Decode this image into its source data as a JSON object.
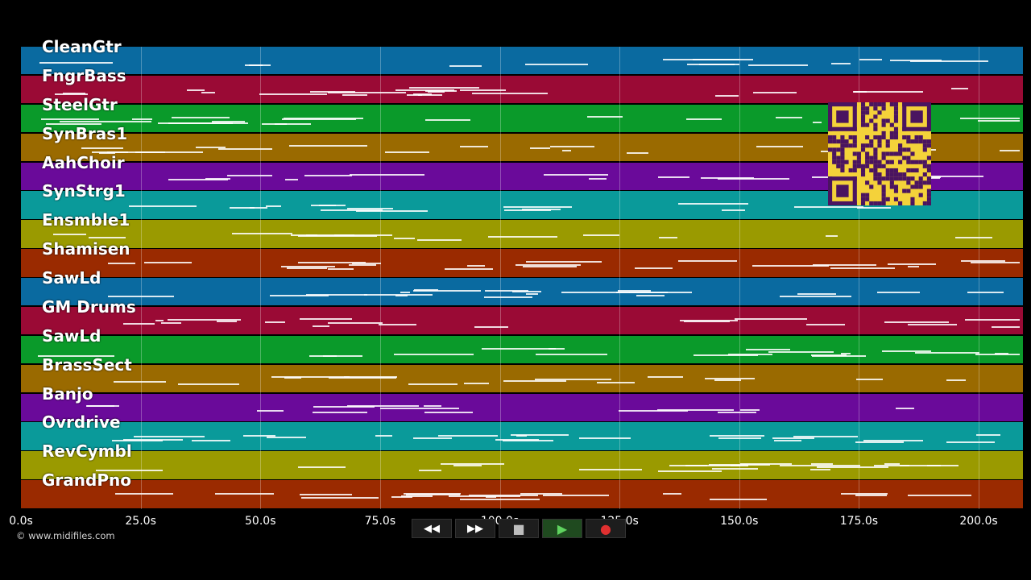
{
  "tracks": [
    {
      "name": "CleanGtr",
      "color": "#0a6aa0"
    },
    {
      "name": "FngrBass",
      "color": "#9a0a35"
    },
    {
      "name": "SteelGtr",
      "color": "#0a9a2a"
    },
    {
      "name": "SynBras1",
      "color": "#9a6a00"
    },
    {
      "name": "AahChoir",
      "color": "#6a0a9a"
    },
    {
      "name": "SynStrg1",
      "color": "#0a9a9a"
    },
    {
      "name": "Ensmble1",
      "color": "#9a9a00"
    },
    {
      "name": "Shamisen",
      "color": "#9a2a00"
    },
    {
      "name": "SawLd",
      "color": "#0a6aa0"
    },
    {
      "name": "GM Drums",
      "color": "#9a0a35"
    },
    {
      "name": "SawLd",
      "color": "#0a9a2a"
    },
    {
      "name": "BrassSect",
      "color": "#9a6a00"
    },
    {
      "name": "Banjo",
      "color": "#6a0a9a"
    },
    {
      "name": "Ovrdrive",
      "color": "#0a9a9a"
    },
    {
      "name": "RevCymbl",
      "color": "#9a9a00"
    },
    {
      "name": "GrandPno",
      "color": "#9a2a00"
    }
  ],
  "timeline": {
    "ticks": [
      "0.0s",
      "25.0s",
      "50.0s",
      "75.0s",
      "100.0s",
      "125.0s",
      "150.0s",
      "175.0s",
      "200.0s"
    ],
    "tick_seconds": [
      0,
      25,
      50,
      75,
      100,
      125,
      150,
      175,
      200
    ],
    "total_seconds": 209
  },
  "controls": {
    "rewind": "◀◀",
    "forward": "▶▶",
    "stop": "■",
    "play": "▶",
    "record": "●"
  },
  "copyright": "© www.midifiles.com",
  "colors": {
    "background": "#000000",
    "qr": "#f4d23a"
  }
}
